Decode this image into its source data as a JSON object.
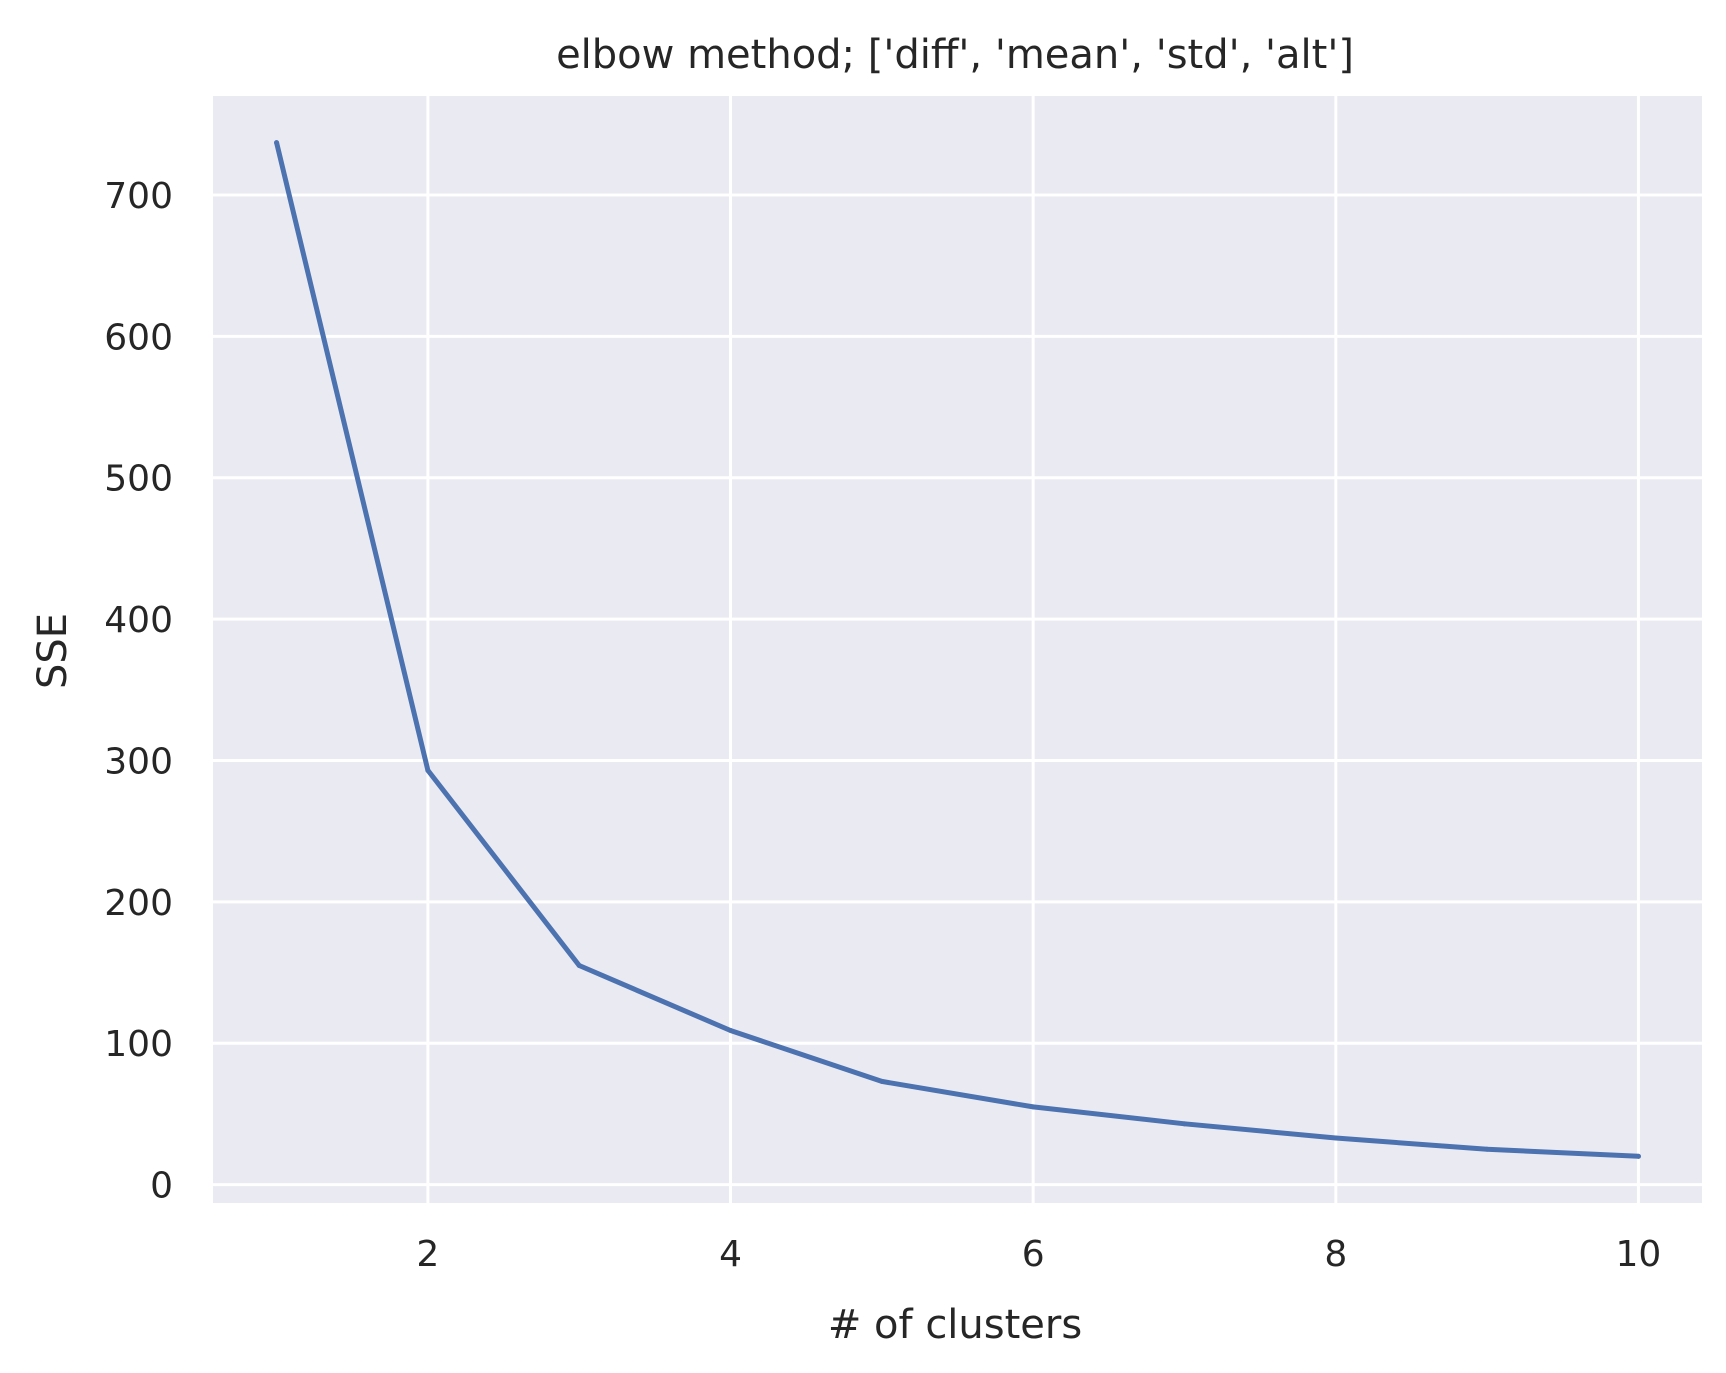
{
  "chart_data": {
    "type": "line",
    "title": "elbow method; ['diff', 'mean', 'std', 'alt']",
    "xlabel": "# of clusters",
    "ylabel": "SSE",
    "x": [
      1,
      2,
      3,
      4,
      5,
      6,
      7,
      8,
      9,
      10
    ],
    "series": [
      {
        "values": [
          737,
          293,
          155,
          109,
          73,
          55,
          43,
          33,
          25,
          20
        ]
      }
    ],
    "xlim": [
      0.58,
      10.42
    ],
    "ylim": [
      -13,
      770
    ],
    "xticks": [
      2,
      4,
      6,
      8,
      10
    ],
    "yticks": [
      0,
      100,
      200,
      300,
      400,
      500,
      600,
      700
    ],
    "grid": true,
    "colors": {
      "background": "#eaeaf2",
      "grid": "#ffffff",
      "line": "#4c72b0",
      "text": "#262626"
    }
  }
}
